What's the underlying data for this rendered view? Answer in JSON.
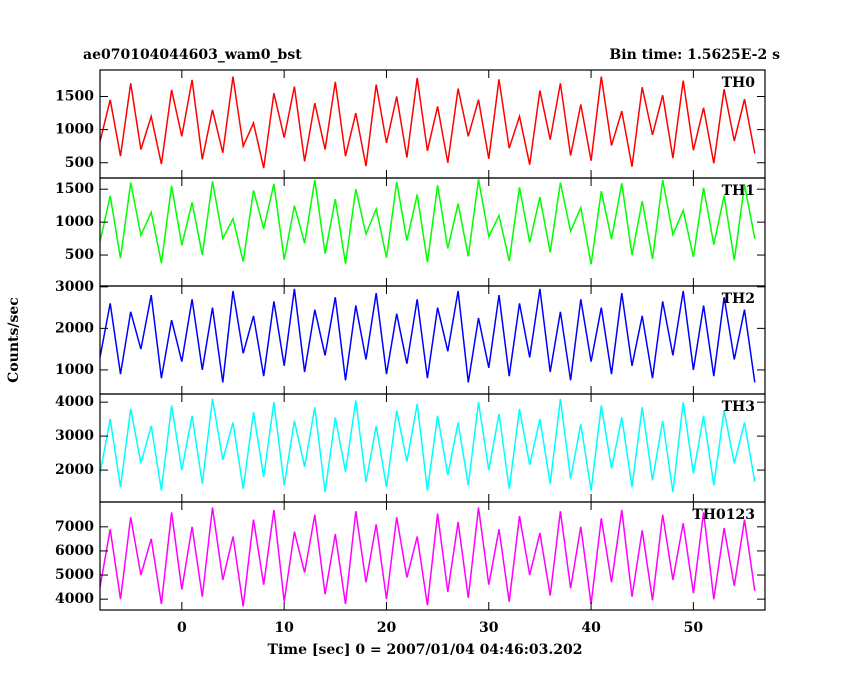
{
  "chart_data": {
    "type": "line",
    "title": "ae070104044603_wam0_bst",
    "subtitle": "Bin time: 1.5625E-2 s",
    "xlabel": "Time [sec] 0 = 2007/01/04 04:46:03.202",
    "ylabel": "Counts/sec",
    "xlim": [
      -8,
      57
    ],
    "xticks": [
      0,
      10,
      20,
      30,
      40,
      50
    ],
    "x": [
      -8,
      -7,
      -6,
      -5,
      -4,
      -3,
      -2,
      -1,
      0,
      1,
      2,
      3,
      4,
      5,
      6,
      7,
      8,
      9,
      10,
      11,
      12,
      13,
      14,
      15,
      16,
      17,
      18,
      19,
      20,
      21,
      22,
      23,
      24,
      25,
      26,
      27,
      28,
      29,
      30,
      31,
      32,
      33,
      34,
      35,
      36,
      37,
      38,
      39,
      40,
      41,
      42,
      43,
      44,
      45,
      46,
      47,
      48,
      49,
      50,
      51,
      52,
      53,
      54,
      55,
      56
    ],
    "series": [
      {
        "name": "TH0",
        "color": "#ff0000",
        "ylim": [
          270,
          1900
        ],
        "yticks": [
          500,
          1000,
          1500
        ],
        "values": [
          820,
          1450,
          600,
          1700,
          700,
          1200,
          480,
          1600,
          900,
          1750,
          550,
          1300,
          650,
          1800,
          750,
          1100,
          420,
          1550,
          880,
          1650,
          520,
          1400,
          700,
          1720,
          600,
          1250,
          450,
          1680,
          800,
          1500,
          580,
          1780,
          680,
          1350,
          500,
          1620,
          900,
          1450,
          560,
          1760,
          720,
          1200,
          470,
          1590,
          850,
          1700,
          610,
          1380,
          530,
          1800,
          760,
          1280,
          440,
          1640,
          920,
          1520,
          570,
          1740,
          690,
          1330,
          490,
          1610,
          830,
          1460,
          640
        ]
      },
      {
        "name": "TH1",
        "color": "#00ff00",
        "ylim": [
          30,
          1670
        ],
        "yticks": [
          500,
          1000,
          1500
        ],
        "values": [
          700,
          1400,
          450,
          1600,
          800,
          1150,
          380,
          1550,
          650,
          1300,
          500,
          1620,
          750,
          1050,
          400,
          1480,
          900,
          1580,
          430,
          1250,
          680,
          1640,
          520,
          1350,
          370,
          1500,
          820,
          1200,
          460,
          1610,
          720,
          1420,
          390,
          1560,
          600,
          1280,
          480,
          1650,
          780,
          1100,
          410,
          1530,
          690,
          1380,
          540,
          1600,
          860,
          1220,
          360,
          1470,
          740,
          1590,
          500,
          1320,
          440,
          1640,
          810,
          1180,
          470,
          1520,
          660,
          1400,
          420,
          1570,
          750
        ]
      },
      {
        "name": "TH2",
        "color": "#0000ff",
        "ylim": [
          420,
          3020
        ],
        "yticks": [
          1000,
          2000,
          3000
        ],
        "values": [
          1300,
          2600,
          900,
          2400,
          1500,
          2800,
          800,
          2200,
          1200,
          2700,
          1000,
          2500,
          700,
          2900,
          1400,
          2300,
          850,
          2650,
          1100,
          2950,
          950,
          2450,
          1350,
          2750,
          750,
          2550,
          1250,
          2850,
          900,
          2350,
          1150,
          2700,
          800,
          2500,
          1450,
          2900,
          700,
          2250,
          1050,
          2800,
          850,
          2600,
          1300,
          2950,
          950,
          2400,
          750,
          2700,
          1200,
          2500,
          900,
          2850,
          1100,
          2300,
          800,
          2650,
          1350,
          2900,
          1000,
          2550,
          850,
          2750,
          1250,
          2450,
          700
        ]
      },
      {
        "name": "TH3",
        "color": "#00ffff",
        "ylim": [
          1060,
          4240
        ],
        "yticks": [
          2000,
          3000,
          4000
        ],
        "values": [
          1900,
          3500,
          1500,
          3800,
          2200,
          3300,
          1400,
          3900,
          2000,
          3600,
          1600,
          4100,
          2300,
          3400,
          1450,
          3700,
          1800,
          4000,
          1550,
          3450,
          2100,
          3850,
          1350,
          3550,
          1950,
          4050,
          1650,
          3300,
          1500,
          3750,
          2250,
          3950,
          1400,
          3600,
          1850,
          3400,
          1550,
          4000,
          2000,
          3650,
          1450,
          3800,
          2150,
          3500,
          1600,
          4100,
          1750,
          3350,
          1400,
          3900,
          2050,
          3550,
          1500,
          3850,
          1700,
          3450,
          1350,
          4000,
          1900,
          3600,
          1550,
          3750,
          2200,
          3400,
          1650
        ]
      },
      {
        "name": "TH0123",
        "color": "#ff00ff",
        "ylim": [
          3550,
          8030
        ],
        "yticks": [
          4000,
          5000,
          6000,
          7000
        ],
        "values": [
          4500,
          6900,
          4000,
          7400,
          5000,
          6500,
          3800,
          7600,
          4400,
          7000,
          4100,
          7800,
          4800,
          6600,
          3700,
          7300,
          4600,
          7700,
          3900,
          6800,
          5100,
          7500,
          4200,
          6700,
          3800,
          7650,
          4700,
          7100,
          4000,
          7400,
          4900,
          6600,
          3750,
          7550,
          4300,
          7200,
          4050,
          7800,
          4600,
          6900,
          3900,
          7450,
          5000,
          6750,
          4150,
          7650,
          4450,
          7000,
          3800,
          7350,
          4700,
          7700,
          4100,
          6850,
          3950,
          7500,
          4800,
          7150,
          4250,
          7600,
          4000,
          6950,
          4550,
          7300,
          4350
        ]
      }
    ]
  }
}
